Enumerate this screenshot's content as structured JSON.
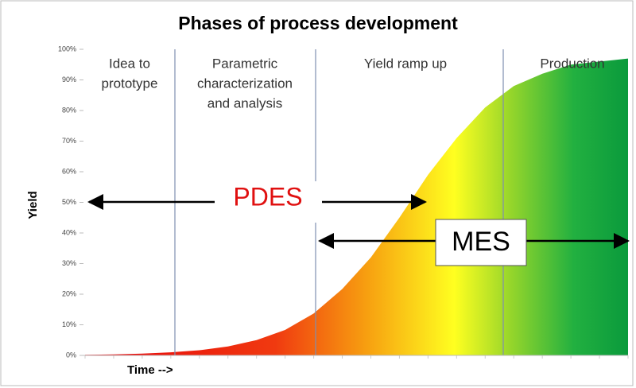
{
  "chart_data": {
    "type": "area",
    "title": "Phases of process development",
    "y_label": "Yield",
    "x_label": "Time -->",
    "phases": [
      [
        "Idea to",
        "prototype"
      ],
      [
        "Parametric",
        "characterization",
        "and analysis"
      ],
      [
        "Yield ramp up"
      ],
      [
        "Production"
      ]
    ],
    "annotations": [
      "PDES",
      "MES"
    ],
    "categories": [
      null,
      null,
      null,
      null,
      null,
      null,
      null,
      null,
      null,
      null,
      null,
      null,
      null,
      null,
      null,
      null,
      null,
      null,
      null,
      null
    ],
    "values": [
      0.2,
      0.3,
      0.6,
      1,
      1.7,
      2.9,
      5,
      8.3,
      13.7,
      21.7,
      32,
      45,
      59,
      71,
      81,
      88,
      92,
      95,
      96,
      97
    ],
    "ylim": [
      0,
      100
    ],
    "yticks": [
      {
        "value": 0,
        "label": "0%"
      },
      {
        "value": 10,
        "label": "10%"
      },
      {
        "value": 20,
        "label": "20%"
      },
      {
        "value": 30,
        "label": "30%"
      },
      {
        "value": 40,
        "label": "40%"
      },
      {
        "value": 50,
        "label": "50%"
      },
      {
        "value": 60,
        "label": "60%"
      },
      {
        "value": 70,
        "label": "70%"
      },
      {
        "value": 80,
        "label": "80%"
      },
      {
        "value": 90,
        "label": "90%"
      },
      {
        "value": 100,
        "label": "100%"
      }
    ]
  }
}
